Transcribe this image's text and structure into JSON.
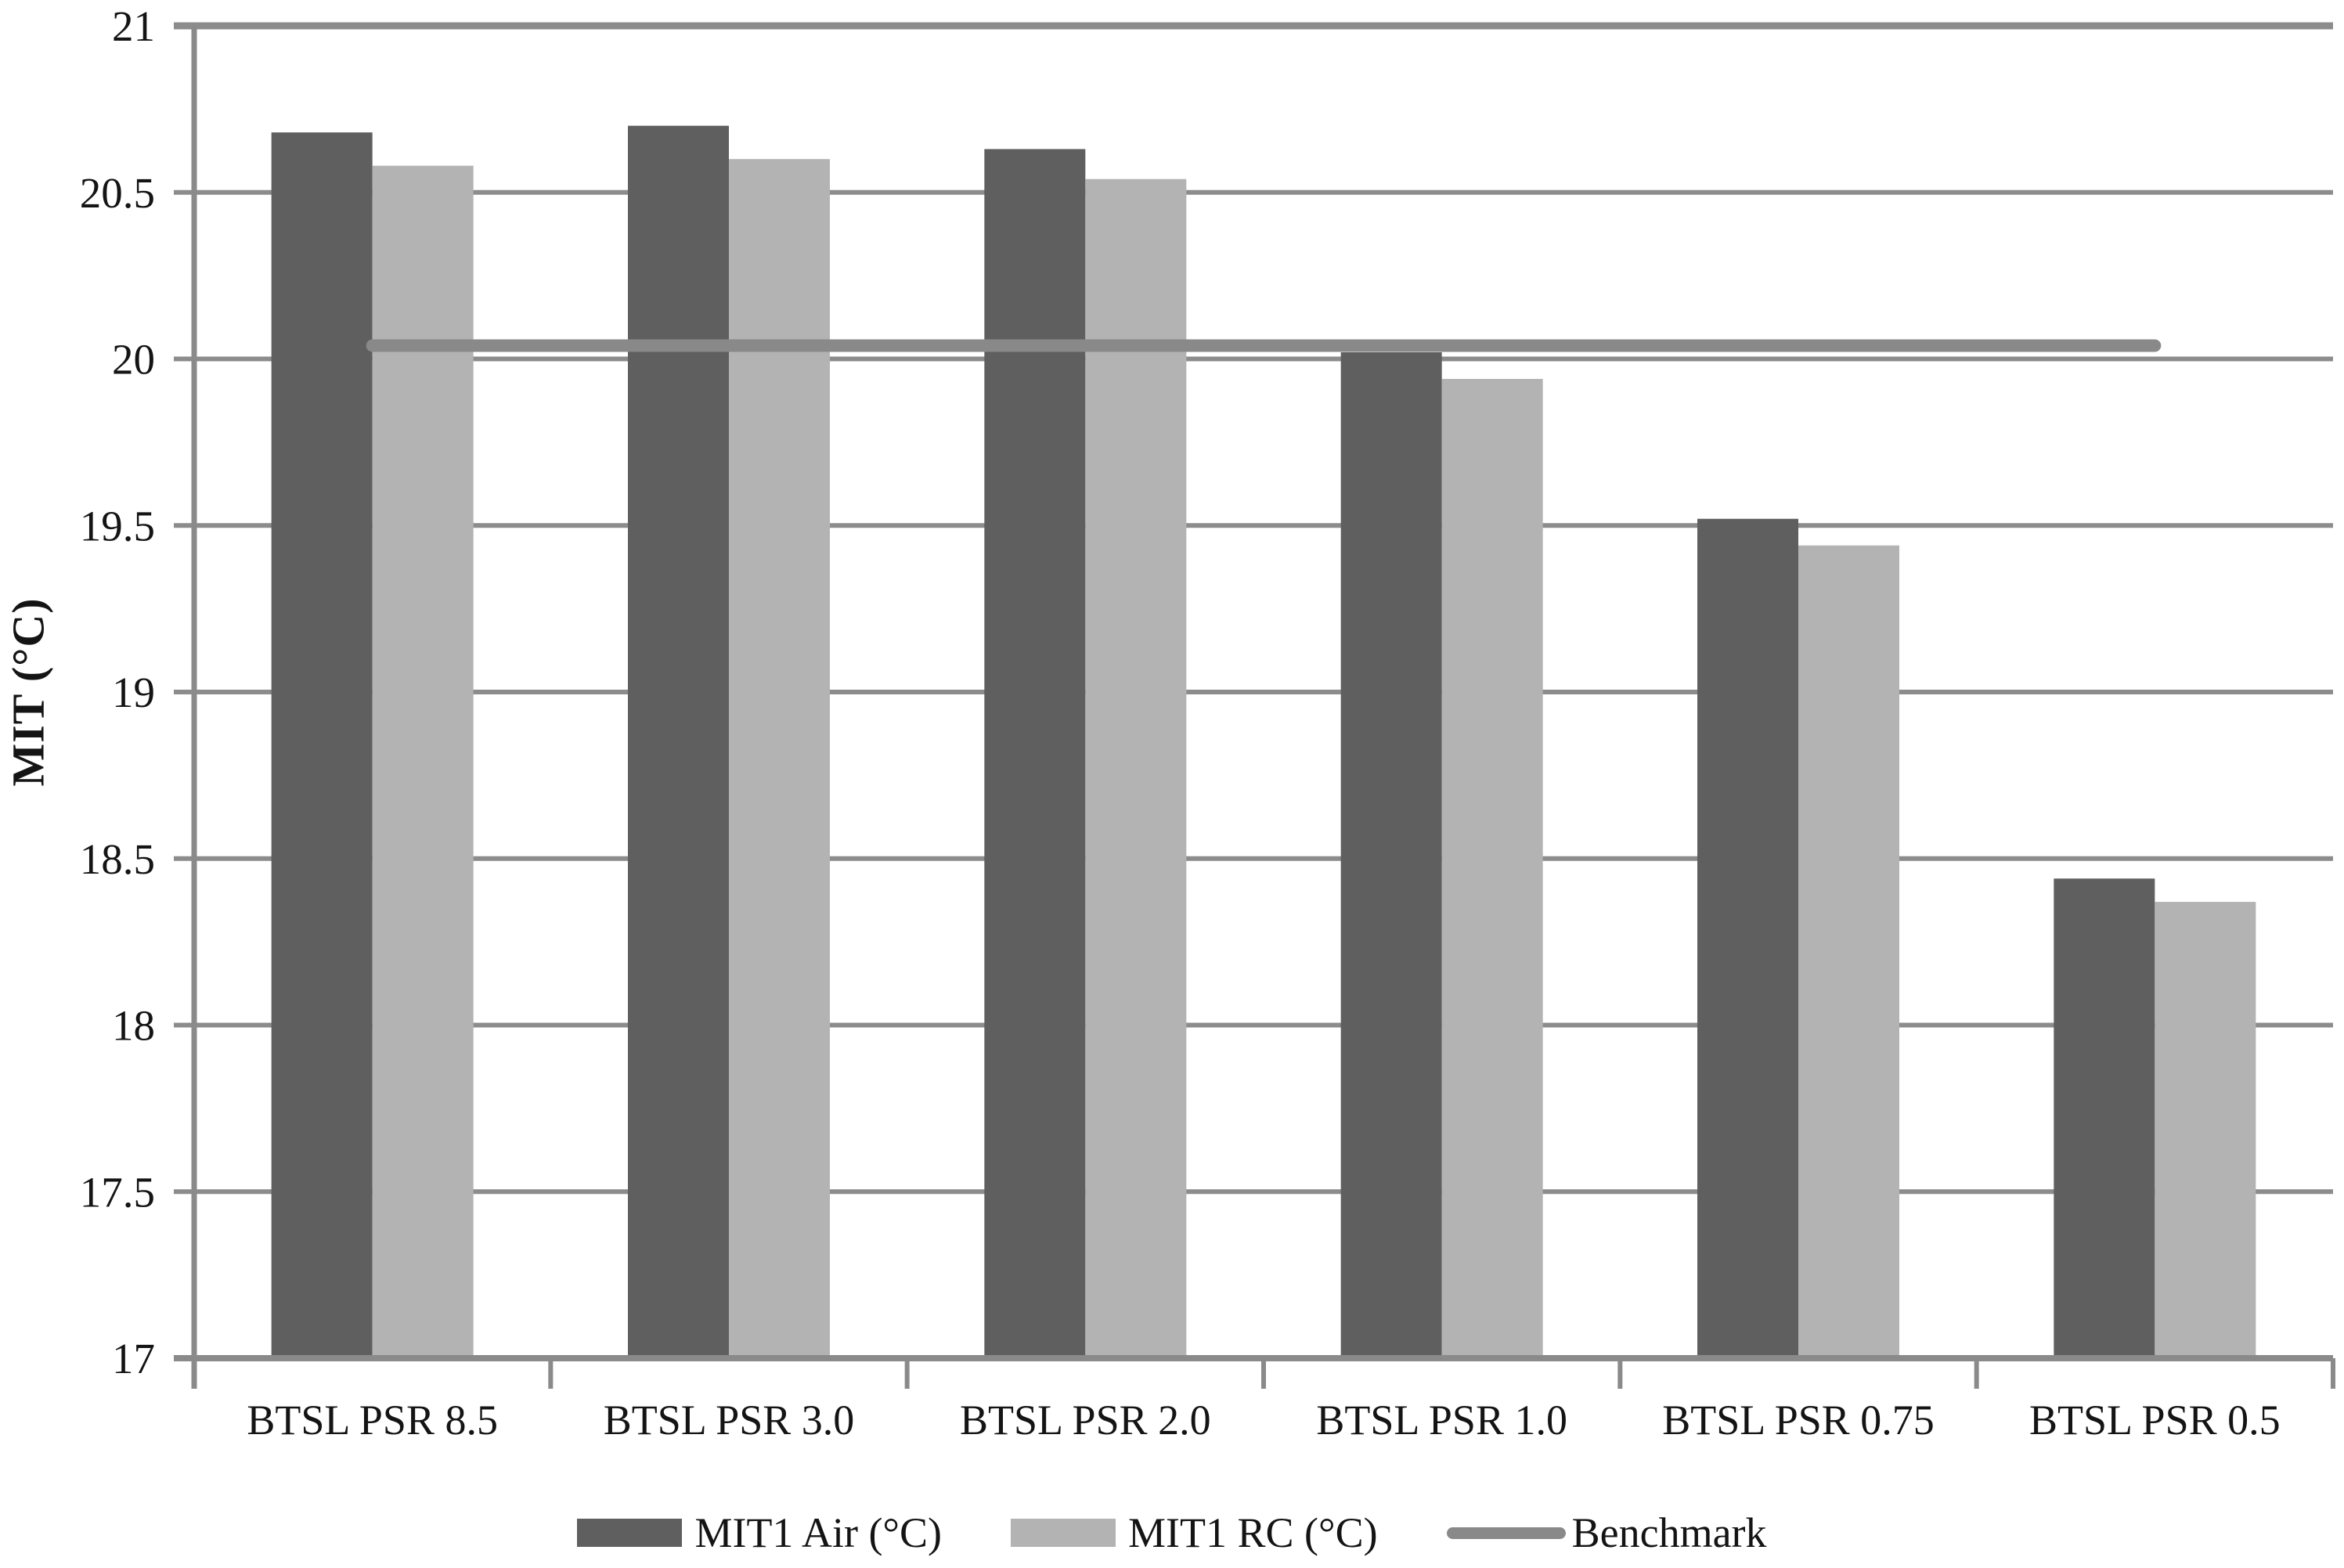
{
  "chart_data": {
    "type": "bar",
    "title": "",
    "xlabel": "",
    "ylabel": "MIT (°C)",
    "categories": [
      "BTSL PSR 8.5",
      "BTSL PSR 3.0",
      "BTSL PSR 2.0",
      "BTSL PSR 1.0",
      "BTSL PSR 0.75",
      "BTSL PSR 0.5"
    ],
    "series": [
      {
        "name": "MIT1 Air (°C)",
        "color": "#5F5F5F",
        "values": [
          20.68,
          20.7,
          20.63,
          20.02,
          19.52,
          18.44
        ]
      },
      {
        "name": "MIT1 RC (°C)",
        "color": "#B3B3B3",
        "values": [
          20.58,
          20.6,
          20.54,
          19.94,
          19.44,
          18.37
        ]
      }
    ],
    "benchmark": {
      "name": "Benchmark",
      "value": 20.04,
      "color": "#898989"
    },
    "ylim": [
      17,
      21
    ],
    "ytick_step": 0.5,
    "yticks": [
      "21",
      "20.5",
      "20",
      "19.5",
      "19",
      "18.5",
      "18",
      "17.5",
      "17"
    ],
    "grid": true,
    "legend_position": "bottom-center",
    "colors": {
      "gridline": "#8C8C8C",
      "axis": "#8A8A8A",
      "text": "#141414",
      "background": "#FFFFFF"
    }
  }
}
